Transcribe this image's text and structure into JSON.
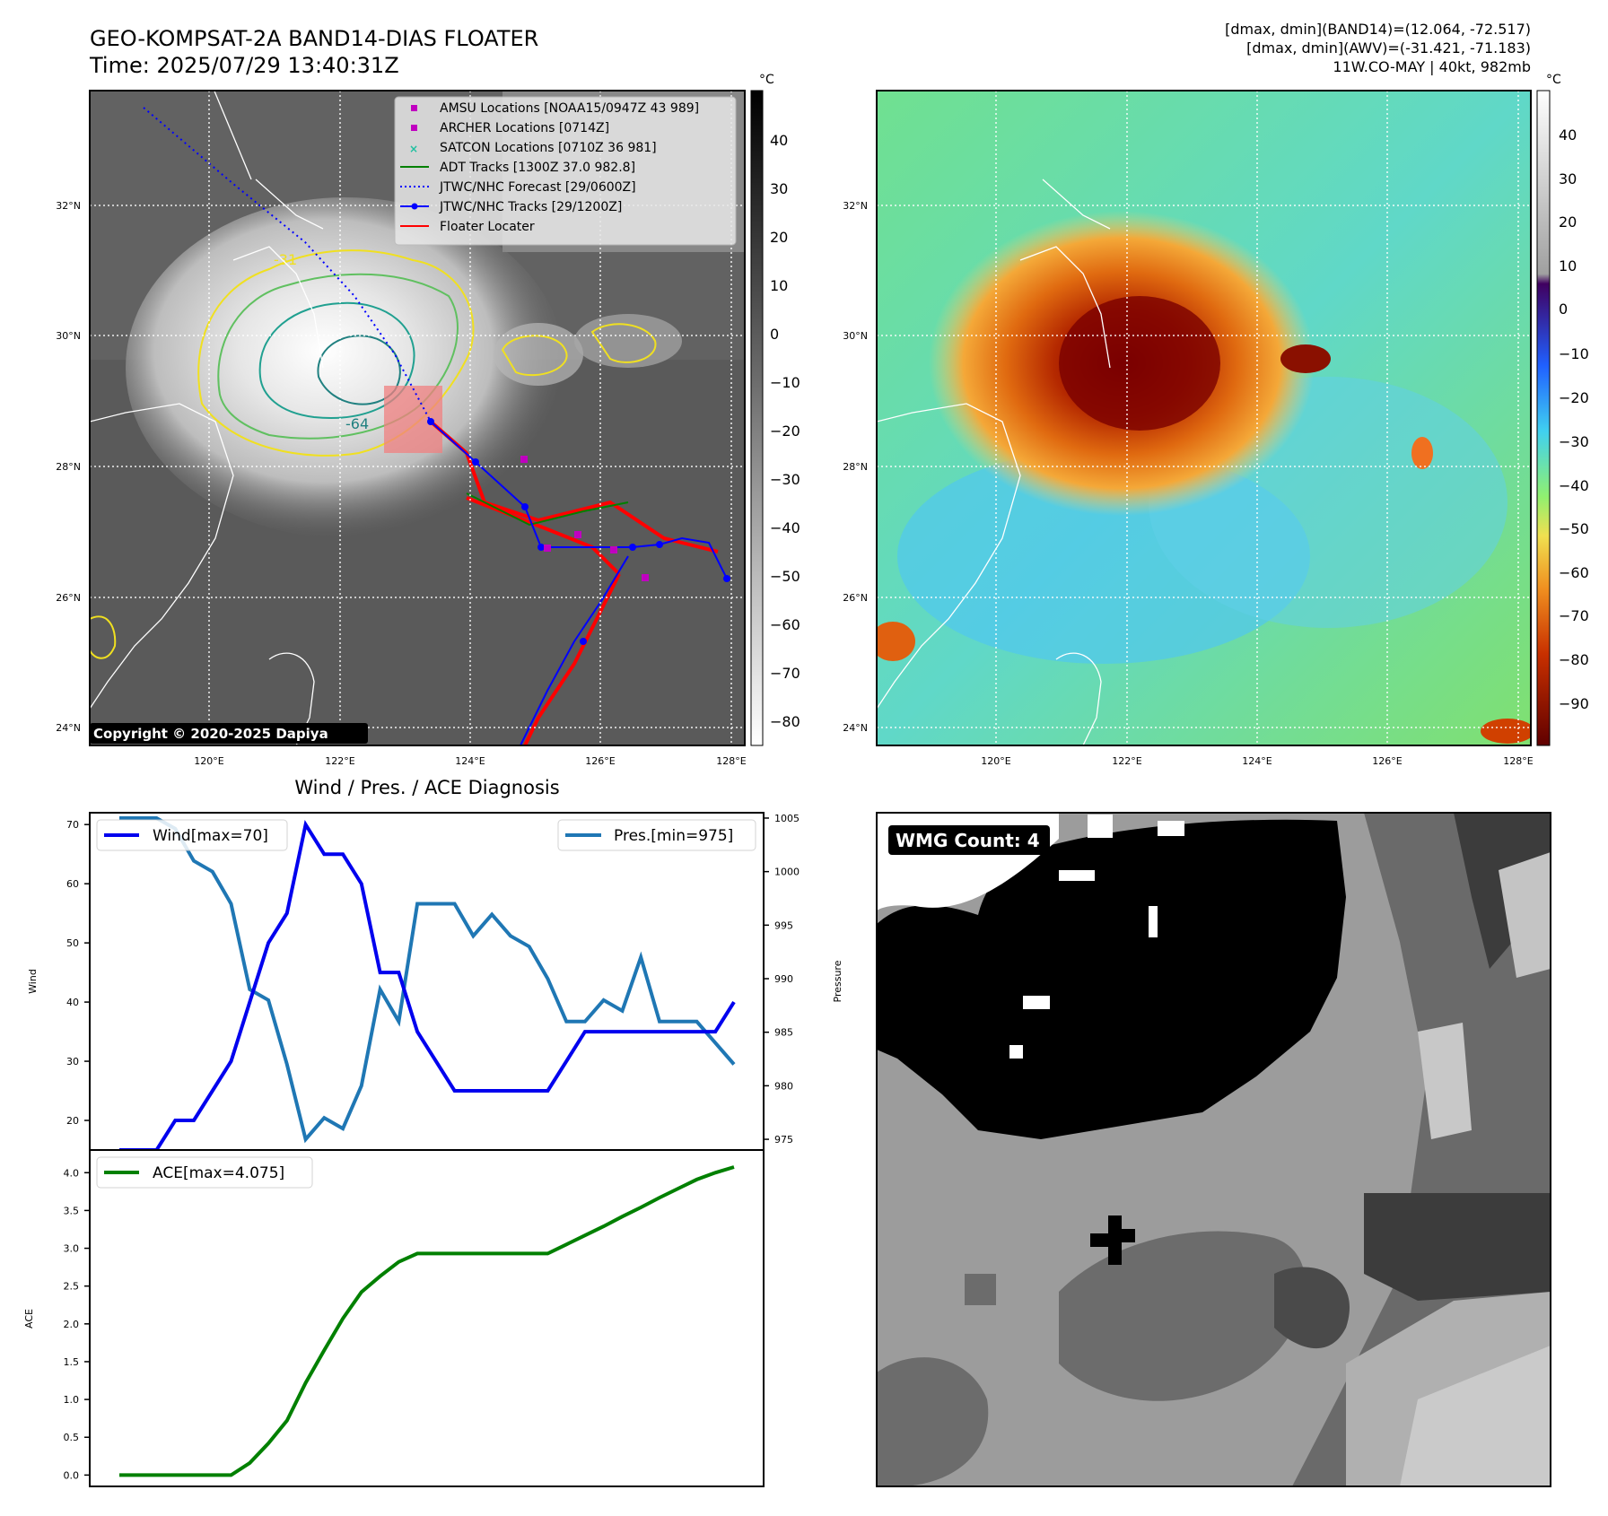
{
  "header": {
    "title": "GEO-KOMPSAT-2A BAND14-DIAS FLOATER",
    "time": "Time: 2025/07/29 13:40:31Z",
    "info_line1": "[dmax, dmin](BAND14)=(12.064, -72.517)",
    "info_line2": "[dmax, dmin](AWV)=(-31.421, -71.183)",
    "info_line3": "11W.CO-MAY | 40kt, 982mb"
  },
  "map": {
    "lat_labels": [
      "32°N",
      "30°N",
      "28°N",
      "26°N",
      "24°N"
    ],
    "lon_labels": [
      "120°E",
      "122°E",
      "124°E",
      "126°E",
      "128°E"
    ],
    "copyright": "Copyright © 2020-2025 Dapiya",
    "contour_labels": [
      "-31",
      "-64"
    ],
    "legend": [
      {
        "label": "AMSU Locations [NOAA15/0947Z 43 989]",
        "color": "#c000c0",
        "marker": "square"
      },
      {
        "label": "ARCHER Locations [0714Z]",
        "color": "#c000c0",
        "marker": "square"
      },
      {
        "label": "SATCON Locations [0710Z 36 981]",
        "color": "#20c0a0",
        "marker": "x"
      },
      {
        "label": "ADT Tracks [1300Z 37.0 982.8]",
        "color": "#008000",
        "marker": "line"
      },
      {
        "label": "JTWC/NHC Forecast [29/0600Z]",
        "color": "#0000ff",
        "marker": "dotted"
      },
      {
        "label": "JTWC/NHC Tracks [29/1200Z]",
        "color": "#0000ff",
        "marker": "line-dot"
      },
      {
        "label": "Floater Locater",
        "color": "#ff0000",
        "marker": "line"
      }
    ],
    "ir_colorbar": {
      "unit": "°C",
      "ticks": [
        "40",
        "30",
        "20",
        "10",
        "0",
        "−10",
        "−20",
        "−30",
        "−40",
        "−50",
        "−60",
        "−70",
        "−80"
      ]
    },
    "color_colorbar": {
      "unit": "°C",
      "ticks": [
        "40",
        "30",
        "20",
        "10",
        "0",
        "−10",
        "−20",
        "−30",
        "−40",
        "−50",
        "−60",
        "−70",
        "−80",
        "−90"
      ]
    }
  },
  "wmg": {
    "label": "WMG Count: 4"
  },
  "colors": {
    "wind": "#0000ee",
    "pressure": "#1f77b4",
    "ace": "#008000",
    "floater": "#ff0000"
  },
  "chart_data": [
    {
      "type": "line",
      "title": "Wind / Pres. / ACE Diagnosis",
      "ylabel": "Wind",
      "y2label": "Pressure",
      "ylim": [
        15,
        72
      ],
      "y2lim": [
        974,
        1005.5
      ],
      "yticks": [
        20,
        30,
        40,
        50,
        60,
        70
      ],
      "y2ticks": [
        975,
        980,
        985,
        990,
        995,
        1000,
        1005
      ],
      "legend_left": "Wind[max=70]",
      "legend_right": "Pres.[min=975]",
      "series": [
        {
          "name": "Wind[max=70]",
          "axis": "left",
          "values": [
            15,
            15,
            15,
            20,
            20,
            25,
            30,
            40,
            50,
            55,
            70,
            65,
            65,
            60,
            45,
            45,
            35,
            30,
            25,
            25,
            25,
            25,
            25,
            25,
            30,
            35,
            35,
            35,
            35,
            35,
            35,
            35,
            35,
            40
          ]
        },
        {
          "name": "Pres.[min=975]",
          "axis": "right",
          "values": [
            1005,
            1005,
            1005,
            1004,
            1001,
            1000,
            997,
            989,
            988,
            982,
            975,
            977,
            976,
            980,
            989,
            986,
            997,
            997,
            997,
            994,
            996,
            994,
            993,
            990,
            986,
            986,
            988,
            987,
            992,
            986,
            986,
            986,
            984,
            982
          ]
        }
      ]
    },
    {
      "type": "line",
      "ylabel": "ACE",
      "ylim": [
        -0.15,
        4.3
      ],
      "yticks": [
        0.0,
        0.5,
        1.0,
        1.5,
        2.0,
        2.5,
        3.0,
        3.5,
        4.0
      ],
      "legend_left": "ACE[max=4.075]",
      "series": [
        {
          "name": "ACE[max=4.075]",
          "values": [
            0.0,
            0.0,
            0.0,
            0.0,
            0.0,
            0.0,
            0.0,
            0.16,
            0.42,
            0.72,
            1.22,
            1.65,
            2.07,
            2.42,
            2.63,
            2.82,
            2.93,
            2.93,
            2.93,
            2.93,
            2.93,
            2.93,
            2.93,
            2.93,
            3.05,
            3.17,
            3.29,
            3.42,
            3.54,
            3.67,
            3.79,
            3.91,
            4.0,
            4.075
          ]
        }
      ]
    }
  ]
}
